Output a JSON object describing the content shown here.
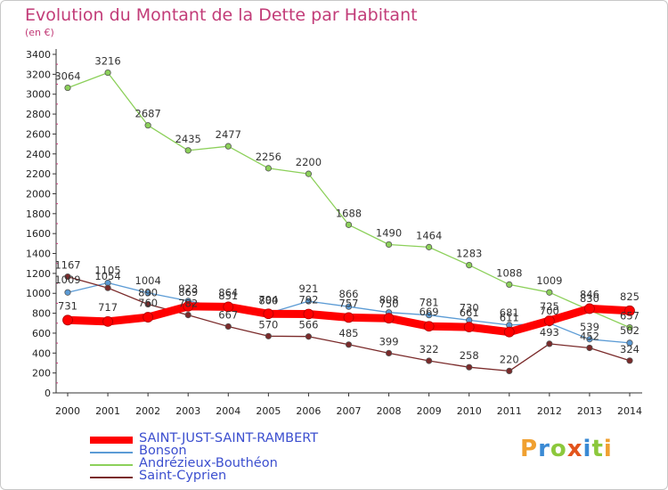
{
  "title": "Evolution du Montant de la Dette par Habitant",
  "subtitle": "(en €)",
  "logo": {
    "text": "Proxiti",
    "colors": [
      "#f0a030",
      "#3a8ad4",
      "#8cc83c",
      "#e2541c",
      "#3a8ad4",
      "#8cc83c",
      "#f0a030"
    ]
  },
  "chart_data": {
    "type": "line",
    "x": [
      "2000",
      "2001",
      "2002",
      "2003",
      "2004",
      "2005",
      "2006",
      "2007",
      "2008",
      "2009",
      "2010",
      "2011",
      "2012",
      "2013",
      "2014"
    ],
    "ylim": [
      0,
      3400
    ],
    "yticks": [
      0,
      200,
      400,
      600,
      800,
      1000,
      1200,
      1400,
      1600,
      1800,
      2000,
      2200,
      2400,
      2600,
      2800,
      3000,
      3200,
      3400
    ],
    "grid": false,
    "legend": "bottom-left",
    "series": [
      {
        "name": "SAINT-JUST-SAINT-RAMBERT",
        "color": "#ff0000",
        "values": [
          731,
          717,
          760,
          869,
          864,
          794,
          792,
          757,
          750,
          669,
          661,
          611,
          725,
          846,
          825
        ],
        "labels": [
          "731",
          "717",
          "760",
          "869",
          "864",
          "794",
          "792",
          "757",
          "750",
          "669",
          "661",
          "611",
          "725",
          "846",
          "825"
        ]
      },
      {
        "name": "Bonson",
        "color": "#5b9bd5",
        "values": [
          1009,
          1105,
          1004,
          923,
          851,
          800,
          921,
          866,
          808,
          781,
          730,
          681,
          700,
          539,
          502
        ],
        "labels": [
          "1009",
          "1105",
          "1004",
          "923",
          "851",
          "800",
          "921",
          "866",
          "808",
          "781",
          "730",
          "681",
          "700",
          "539",
          "502"
        ]
      },
      {
        "name": "Andrézieux-Bouthéon",
        "color": "#8cd05a",
        "values": [
          3064,
          3216,
          2687,
          2435,
          2477,
          2256,
          2200,
          1688,
          1490,
          1464,
          1283,
          1088,
          1009,
          830,
          657
        ],
        "labels": [
          "3064",
          "3216",
          "2687",
          "2435",
          "2477",
          "2256",
          "2200",
          "1688",
          "1490",
          "1464",
          "1283",
          "1088",
          "1009",
          "830",
          "657"
        ]
      },
      {
        "name": "Saint-Cyprien",
        "color": "#7a2a2a",
        "values": [
          1167,
          1054,
          890,
          782,
          667,
          570,
          566,
          485,
          399,
          322,
          258,
          220,
          493,
          452,
          324
        ],
        "labels": [
          "1167",
          "1054",
          "890",
          "782",
          "667",
          "570",
          "566",
          "485",
          "399",
          "322",
          "258",
          "220",
          "493",
          "452",
          "324"
        ]
      }
    ]
  }
}
